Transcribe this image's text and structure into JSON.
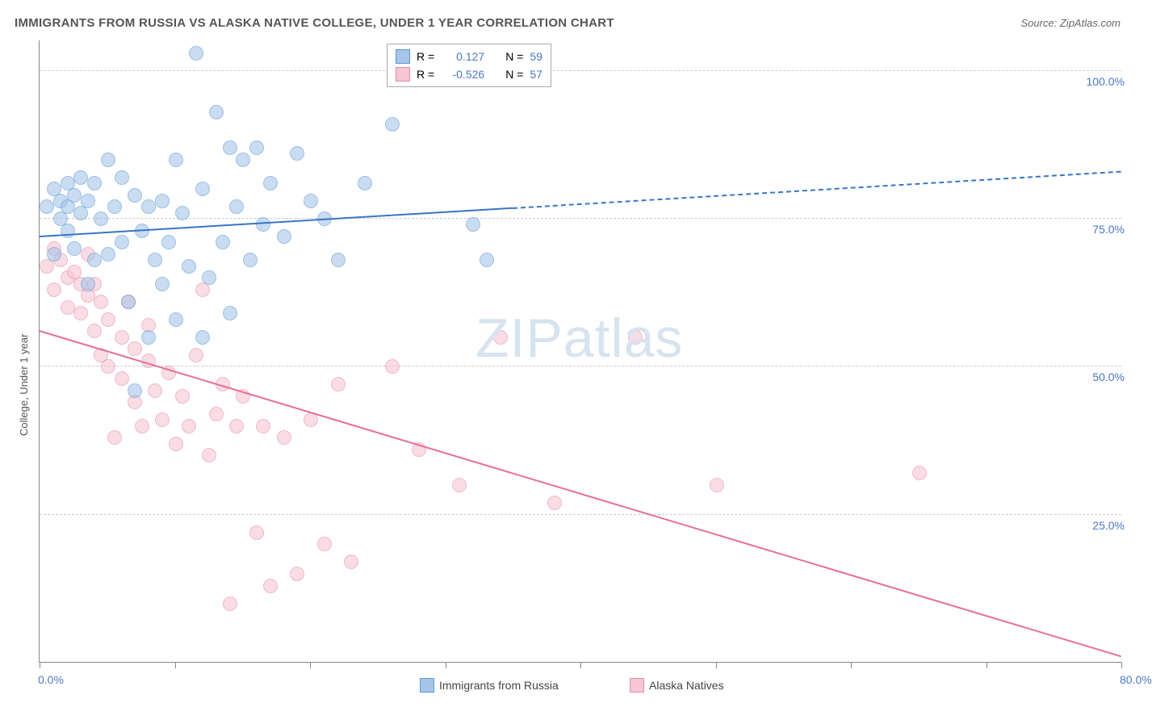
{
  "header": {
    "title": "IMMIGRANTS FROM RUSSIA VS ALASKA NATIVE COLLEGE, UNDER 1 YEAR CORRELATION CHART",
    "source_prefix": "Source: ",
    "source": "ZipAtlas.com"
  },
  "chart": {
    "type": "scatter",
    "ylabel": "College, Under 1 year",
    "xlim": [
      0,
      80
    ],
    "ylim": [
      0,
      105
    ],
    "xtick_percents": [
      0,
      10,
      20,
      30,
      40,
      50,
      60,
      70,
      80
    ],
    "x_axis_labels": [
      {
        "v": 0,
        "label": "0.0%"
      },
      {
        "v": 80,
        "label": "80.0%"
      }
    ],
    "y_gridlines": [
      25,
      50,
      75,
      100
    ],
    "y_axis_labels": [
      {
        "v": 25,
        "label": "25.0%"
      },
      {
        "v": 50,
        "label": "50.0%"
      },
      {
        "v": 75,
        "label": "75.0%"
      },
      {
        "v": 100,
        "label": "100.0%"
      }
    ],
    "grid_color": "#cccccc",
    "axis_color": "#888888",
    "tick_label_color": "#4a78c4",
    "background_color": "#ffffff",
    "marker_radius": 8,
    "series": {
      "blue": {
        "label": "Immigrants from Russia",
        "fill": "#a6c5e8",
        "stroke": "#5c98d6",
        "R": "0.127",
        "N": "59",
        "trend": {
          "x1": 0,
          "y1": 72,
          "x2": 80,
          "y2": 83,
          "solid_until_x": 35,
          "color": "#3a75c4"
        },
        "points": [
          [
            0.5,
            77
          ],
          [
            1,
            69
          ],
          [
            1,
            80
          ],
          [
            1.5,
            75
          ],
          [
            1.5,
            78
          ],
          [
            2,
            81
          ],
          [
            2,
            73
          ],
          [
            2,
            77
          ],
          [
            2.5,
            79
          ],
          [
            2.5,
            70
          ],
          [
            3,
            82
          ],
          [
            3,
            76
          ],
          [
            3.5,
            64
          ],
          [
            3.5,
            78
          ],
          [
            4,
            68
          ],
          [
            4,
            81
          ],
          [
            4.5,
            75
          ],
          [
            5,
            85
          ],
          [
            5,
            69
          ],
          [
            5.5,
            77
          ],
          [
            6,
            71
          ],
          [
            6,
            82
          ],
          [
            6.5,
            61
          ],
          [
            7,
            79
          ],
          [
            7,
            46
          ],
          [
            7.5,
            73
          ],
          [
            8,
            55
          ],
          [
            8,
            77
          ],
          [
            8.5,
            68
          ],
          [
            9,
            64
          ],
          [
            9,
            78
          ],
          [
            9.5,
            71
          ],
          [
            10,
            85
          ],
          [
            10,
            58
          ],
          [
            10.5,
            76
          ],
          [
            11,
            67
          ],
          [
            11.5,
            103
          ],
          [
            12,
            80
          ],
          [
            12,
            55
          ],
          [
            12.5,
            65
          ],
          [
            13,
            93
          ],
          [
            13.5,
            71
          ],
          [
            14,
            87
          ],
          [
            14,
            59
          ],
          [
            14.5,
            77
          ],
          [
            15,
            85
          ],
          [
            15.5,
            68
          ],
          [
            16,
            87
          ],
          [
            16.5,
            74
          ],
          [
            17,
            81
          ],
          [
            18,
            72
          ],
          [
            19,
            86
          ],
          [
            20,
            78
          ],
          [
            21,
            75
          ],
          [
            22,
            68
          ],
          [
            24,
            81
          ],
          [
            26,
            91
          ],
          [
            32,
            74
          ],
          [
            33,
            68
          ]
        ]
      },
      "pink": {
        "label": "Alaska Natives",
        "fill": "#f6c6d3",
        "stroke": "#e88ca6",
        "R": "-0.526",
        "N": "57",
        "trend": {
          "x1": 0,
          "y1": 56,
          "x2": 80,
          "y2": 1,
          "solid_until_x": 80,
          "color": "#e86f93"
        },
        "points": [
          [
            0.5,
            67
          ],
          [
            1,
            70
          ],
          [
            1,
            63
          ],
          [
            1.5,
            68
          ],
          [
            2,
            65
          ],
          [
            2,
            60
          ],
          [
            2.5,
            66
          ],
          [
            3,
            59
          ],
          [
            3,
            64
          ],
          [
            3.5,
            62
          ],
          [
            3.5,
            69
          ],
          [
            4,
            56
          ],
          [
            4,
            64
          ],
          [
            4.5,
            52
          ],
          [
            4.5,
            61
          ],
          [
            5,
            58
          ],
          [
            5,
            50
          ],
          [
            5.5,
            38
          ],
          [
            6,
            55
          ],
          [
            6,
            48
          ],
          [
            6.5,
            61
          ],
          [
            7,
            44
          ],
          [
            7,
            53
          ],
          [
            7.5,
            40
          ],
          [
            8,
            51
          ],
          [
            8,
            57
          ],
          [
            8.5,
            46
          ],
          [
            9,
            41
          ],
          [
            9.5,
            49
          ],
          [
            10,
            37
          ],
          [
            10.5,
            45
          ],
          [
            11,
            40
          ],
          [
            11.5,
            52
          ],
          [
            12,
            63
          ],
          [
            12.5,
            35
          ],
          [
            13,
            42
          ],
          [
            13.5,
            47
          ],
          [
            14,
            10
          ],
          [
            14.5,
            40
          ],
          [
            15,
            45
          ],
          [
            16,
            22
          ],
          [
            16.5,
            40
          ],
          [
            17,
            13
          ],
          [
            18,
            38
          ],
          [
            19,
            15
          ],
          [
            20,
            41
          ],
          [
            21,
            20
          ],
          [
            22,
            47
          ],
          [
            23,
            17
          ],
          [
            26,
            50
          ],
          [
            28,
            36
          ],
          [
            31,
            30
          ],
          [
            34,
            55
          ],
          [
            38,
            27
          ],
          [
            44,
            55
          ],
          [
            50,
            30
          ],
          [
            65,
            32
          ]
        ]
      }
    },
    "legend_top": {
      "R_label": "R =",
      "N_label": "N ="
    },
    "watermark": {
      "text_a": "ZIP",
      "text_b": "atlas"
    }
  }
}
